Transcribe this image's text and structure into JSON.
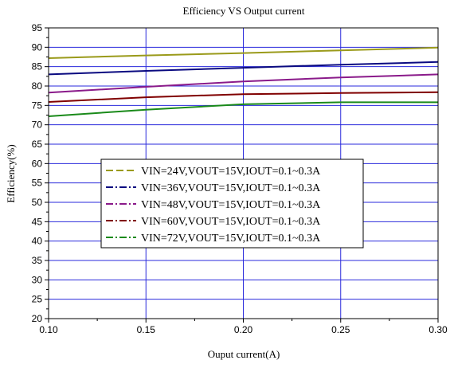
{
  "chart_data": {
    "type": "line",
    "title": "Efficiency VS Output current",
    "xlabel": "Ouput current(A)",
    "ylabel": "Efficiency(%)",
    "xlim": [
      0.1,
      0.3
    ],
    "ylim": [
      20,
      95
    ],
    "xticks": [
      "0.10",
      "0.15",
      "0.20",
      "0.25",
      "0.30"
    ],
    "yticks": [
      "20",
      "25",
      "30",
      "35",
      "40",
      "45",
      "50",
      "55",
      "60",
      "65",
      "70",
      "75",
      "80",
      "85",
      "90",
      "95"
    ],
    "grid": true,
    "legend_position": "center",
    "x": [
      0.1,
      0.15,
      0.2,
      0.25,
      0.3
    ],
    "series": [
      {
        "name": "VIN=24V,VOUT=15V,IOUT=0.1~0.3A",
        "color": "#9a9a1a",
        "values": [
          87.2,
          87.9,
          88.5,
          89.2,
          89.9
        ]
      },
      {
        "name": "VIN=36V,VOUT=15V,IOUT=0.1~0.3A",
        "color": "#0a0a80",
        "values": [
          83.0,
          83.9,
          84.7,
          85.5,
          86.2
        ]
      },
      {
        "name": "VIN=48V,VOUT=15V,IOUT=0.1~0.3A",
        "color": "#8a1a8a",
        "values": [
          78.3,
          79.8,
          81.2,
          82.2,
          83.0
        ]
      },
      {
        "name": "VIN=60V,VOUT=15V,IOUT=0.1~0.3A",
        "color": "#800000",
        "values": [
          75.9,
          77.1,
          77.9,
          78.2,
          78.4
        ]
      },
      {
        "name": "VIN=72V,VOUT=15V,IOUT=0.1~0.3A",
        "color": "#1a8a1a",
        "values": [
          72.2,
          73.9,
          75.3,
          75.8,
          75.8
        ]
      }
    ]
  }
}
